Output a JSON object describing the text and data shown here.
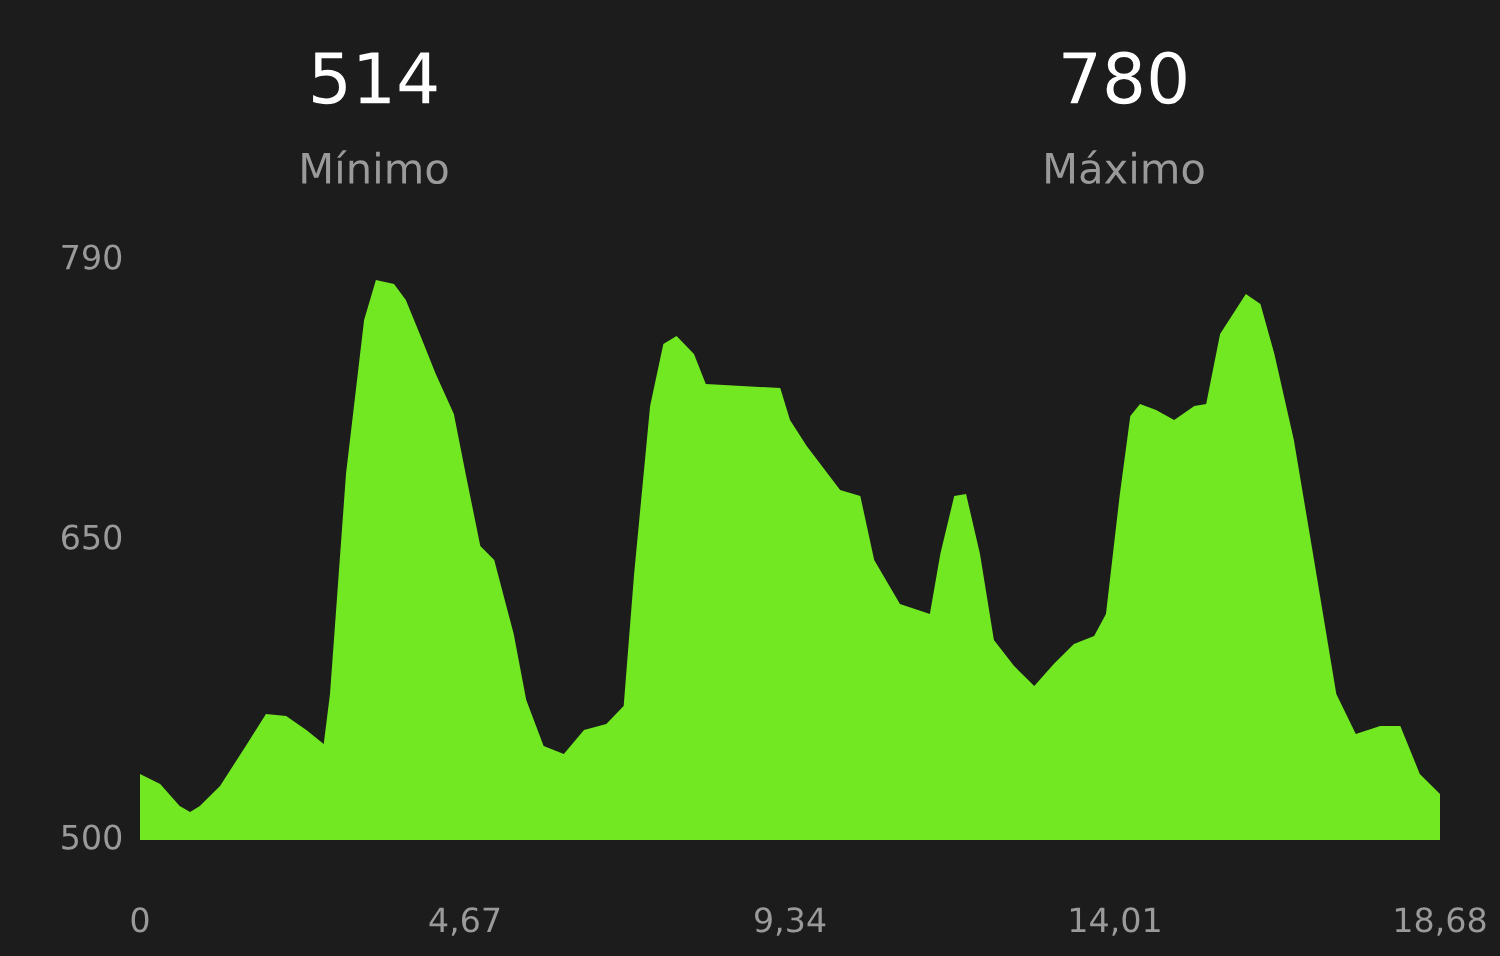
{
  "chart_data": {
    "type": "area",
    "annotations": [
      "514",
      "Mínimo",
      "780",
      "Máximo"
    ],
    "x": [
      0,
      0.29,
      0.57,
      0.72,
      0.86,
      1.15,
      1.52,
      1.81,
      2.1,
      2.39,
      2.64,
      2.73,
      2.96,
      3.22,
      3.39,
      3.65,
      3.82,
      4.02,
      4.25,
      4.51,
      4.68,
      4.89,
      5.09,
      5.37,
      5.55,
      5.8,
      6.09,
      6.38,
      6.7,
      6.95,
      7.1,
      7.33,
      7.52,
      7.71,
      7.96,
      8.13,
      9.2,
      9.34,
      9.58,
      10.06,
      10.35,
      10.55,
      10.92,
      11.35,
      11.5,
      11.7,
      11.87,
      12.07,
      12.27,
      12.56,
      12.85,
      13.13,
      13.42,
      13.71,
      13.88,
      14.08,
      14.23,
      14.37,
      14.6,
      14.86,
      15.15,
      15.32,
      15.52,
      15.89,
      16.1,
      16.3,
      16.58,
      16.87,
      17.19,
      17.47,
      17.82,
      18.11,
      18.39,
      18.68
    ],
    "series": [
      {
        "color": "#72e823",
        "values": [
          533,
          528,
          517,
          514,
          517,
          527,
          547,
          563,
          562,
          555,
          548,
          573,
          683,
          760,
          780,
          778,
          770,
          753,
          733,
          713,
          683,
          647,
          640,
          603,
          570,
          547,
          543,
          555,
          558,
          567,
          633,
          717,
          748,
          752,
          743,
          728,
          726,
          710,
          697,
          675,
          672,
          640,
          618,
          613,
          643,
          672,
          673,
          643,
          600,
          587,
          577,
          588,
          598,
          602,
          613,
          673,
          712,
          718,
          715,
          710,
          717,
          718,
          753,
          773,
          768,
          743,
          700,
          640,
          573,
          553,
          557,
          557,
          533,
          523
        ]
      }
    ],
    "xlim": [
      0,
      18.68
    ],
    "ylim": [
      500,
      790
    ],
    "xticks": [
      0,
      {
        "value": 4.67,
        "label": "4,67"
      },
      {
        "value": 9.34,
        "label": "9,34"
      },
      {
        "value": 14.01,
        "label": "14,01"
      },
      {
        "value": 18.68,
        "label": "18,68"
      }
    ],
    "yticks": [
      500,
      650,
      790
    ],
    "grid": false,
    "legend": false
  }
}
